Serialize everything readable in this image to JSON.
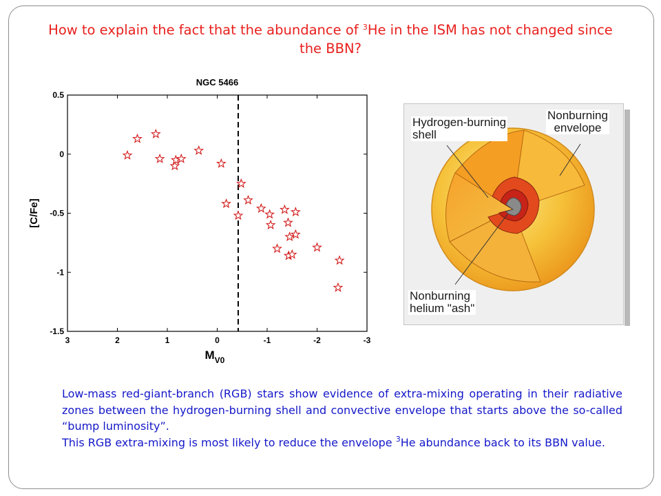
{
  "title": {
    "before": "How to explain the fact that the abundance of ",
    "sup": "3",
    "after": "He in the ISM has not changed since the BBN?"
  },
  "chart_data": {
    "type": "scatter",
    "title": "NGC 5466",
    "xlabel": "M",
    "xlabel_sub": "V0",
    "ylabel": "[C/Fe]",
    "xlim": [
      3,
      -3
    ],
    "ylim": [
      -1.5,
      0.5
    ],
    "x_ticks": [
      "3",
      "2",
      "1",
      "0",
      "-1",
      "-2",
      "-3"
    ],
    "y_ticks": [
      "0.5",
      "0",
      "-0.5",
      "-1",
      "-1.5"
    ],
    "vertical_line_x": -0.42,
    "grid": false,
    "marker": "star",
    "marker_color": "#d21a1a",
    "points": [
      {
        "x": 1.8,
        "y": -0.01
      },
      {
        "x": 1.6,
        "y": 0.13
      },
      {
        "x": 1.23,
        "y": 0.17
      },
      {
        "x": 1.15,
        "y": -0.04
      },
      {
        "x": 0.85,
        "y": -0.1
      },
      {
        "x": 0.83,
        "y": -0.05
      },
      {
        "x": 0.72,
        "y": -0.04
      },
      {
        "x": 0.37,
        "y": 0.03
      },
      {
        "x": -0.08,
        "y": -0.08
      },
      {
        "x": -0.18,
        "y": -0.42
      },
      {
        "x": -0.42,
        "y": -0.52
      },
      {
        "x": -0.48,
        "y": -0.25
      },
      {
        "x": -0.62,
        "y": -0.39
      },
      {
        "x": -0.88,
        "y": -0.46
      },
      {
        "x": -1.05,
        "y": -0.51
      },
      {
        "x": -1.07,
        "y": -0.6
      },
      {
        "x": -1.2,
        "y": -0.8
      },
      {
        "x": -1.35,
        "y": -0.47
      },
      {
        "x": -1.42,
        "y": -0.58
      },
      {
        "x": -1.45,
        "y": -0.7
      },
      {
        "x": -1.43,
        "y": -0.86
      },
      {
        "x": -1.5,
        "y": -0.85
      },
      {
        "x": -1.57,
        "y": -0.49
      },
      {
        "x": -1.57,
        "y": -0.68
      },
      {
        "x": -2.0,
        "y": -0.79
      },
      {
        "x": -2.45,
        "y": -0.9
      },
      {
        "x": -2.42,
        "y": -1.13
      }
    ]
  },
  "diagram": {
    "label_shell": "Hydrogen-burning\nshell",
    "label_envelope": "Nonburning\nenvelope",
    "label_ash": "Nonburning\nhelium \"ash\""
  },
  "body": {
    "para1": "Low-mass red-giant-branch (RGB) stars show evidence of extra-mixing operating in their radiative zones between the hydrogen-burning shell and convective envelope that starts above the so-called “bump luminosity”.",
    "para2_before": "This RGB extra-mixing is most likely to reduce the envelope ",
    "para2_sup": "3",
    "para2_after": "He abundance back to its BBN value."
  },
  "colors": {
    "title": "#e8201d",
    "body": "#1418c8",
    "star_outer": "#f7d040",
    "shell": "#e03a1c",
    "core": "#808080"
  }
}
